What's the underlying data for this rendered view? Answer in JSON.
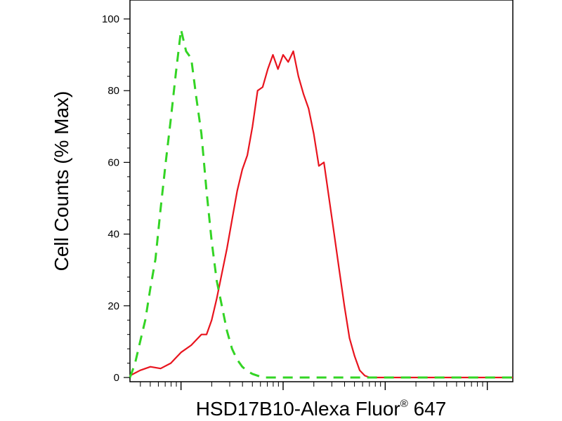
{
  "chart_data": {
    "type": "line",
    "xlabel_main": "HSD17B10-Alexa Fluor",
    "xlabel_sup": "®",
    "xlabel_tail": " 647",
    "ylabel": "Cell Counts (% Max)",
    "x_scale": "log",
    "xlim": [
      0.5,
      4.25
    ],
    "ylim": [
      0,
      100
    ],
    "x_ticklabels": [],
    "y_ticks": [
      0,
      20,
      40,
      60,
      80,
      100
    ],
    "y_ticklabels": [
      "0",
      "20",
      "40",
      "60",
      "80",
      "100"
    ],
    "grid": false,
    "legend": "none",
    "series": [
      {
        "color": "#e8141e",
        "style": "solid",
        "x": [
          0.5,
          0.6,
          0.7,
          0.8,
          0.9,
          1.0,
          1.1,
          1.2,
          1.25,
          1.3,
          1.35,
          1.4,
          1.45,
          1.5,
          1.55,
          1.6,
          1.65,
          1.7,
          1.75,
          1.8,
          1.85,
          1.9,
          1.95,
          2.0,
          2.05,
          2.1,
          2.15,
          2.2,
          2.25,
          2.3,
          2.35,
          2.4,
          2.45,
          2.5,
          2.55,
          2.6,
          2.65,
          2.7,
          2.75,
          2.8,
          2.85,
          2.9,
          2.95,
          3.0,
          3.05,
          3.1,
          3.15,
          3.2,
          3.3,
          3.5,
          3.8,
          4.25
        ],
        "y": [
          0.5,
          2,
          3,
          2.5,
          4,
          7,
          9,
          12,
          12,
          16,
          22,
          29,
          36,
          44,
          52,
          58,
          62,
          70,
          80,
          81,
          86,
          90,
          86,
          90,
          88,
          91,
          84,
          79,
          75,
          68,
          59,
          60,
          50,
          40,
          30,
          20,
          11,
          6,
          2,
          0.5,
          0,
          0,
          0,
          0,
          0,
          0,
          0,
          0,
          0,
          0,
          0,
          0
        ]
      },
      {
        "color": "#33d424",
        "style": "dashed",
        "x": [
          0.5,
          0.55,
          0.6,
          0.65,
          0.7,
          0.75,
          0.8,
          0.85,
          0.9,
          0.95,
          1.0,
          1.05,
          1.1,
          1.15,
          1.2,
          1.25,
          1.3,
          1.35,
          1.4,
          1.45,
          1.5,
          1.55,
          1.6,
          1.65,
          1.7,
          1.75,
          1.8,
          1.9,
          2.0,
          2.2,
          2.4,
          2.6,
          2.8,
          3.0,
          3.5,
          4.25
        ],
        "y": [
          0,
          4,
          10,
          16,
          25,
          33,
          47,
          60,
          72,
          85,
          97,
          91,
          89,
          78,
          68,
          52,
          38,
          27,
          20,
          13,
          8,
          5,
          3,
          1.8,
          1,
          0.5,
          0,
          0,
          0,
          0,
          0,
          0,
          0,
          0,
          0,
          0
        ]
      }
    ]
  }
}
